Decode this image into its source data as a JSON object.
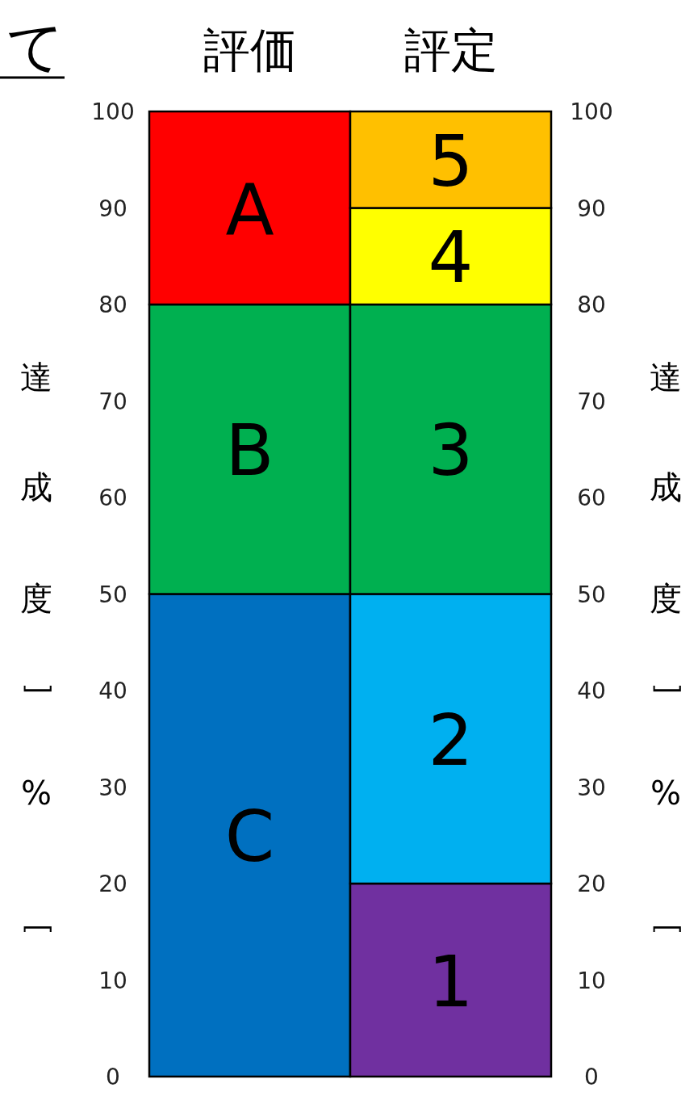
{
  "chart_data": {
    "type": "bar",
    "stacked": true,
    "categories": [
      "評価",
      "評定"
    ],
    "series": [
      {
        "colors": [
          "#0070c0",
          "#7030a0"
        ],
        "values": [
          50,
          20
        ]
      },
      {
        "colors": [
          "#00b050",
          "#00b0f0"
        ],
        "values": [
          30,
          30
        ]
      },
      {
        "colors": [
          "#ff0000",
          "#00b050"
        ],
        "values": [
          20,
          30
        ]
      },
      {
        "colors": [
          null,
          "#ffff00"
        ],
        "values": [
          null,
          10
        ]
      },
      {
        "colors": [
          null,
          "#ffc000"
        ],
        "values": [
          null,
          10
        ]
      }
    ],
    "ylabel": "達成度［%］",
    "y2label": "達成度［%］",
    "ylim": [
      0,
      100
    ],
    "yticks": [
      0,
      10,
      20,
      30,
      40,
      50,
      60,
      70,
      80,
      90,
      100
    ],
    "y2lim": [
      0,
      100
    ],
    "y2ticks": [
      0,
      10,
      20,
      30,
      40,
      50,
      60,
      70,
      80,
      90,
      100
    ],
    "annotations": [
      "て",
      "C",
      "B",
      "A",
      "1",
      "2",
      "3",
      "4",
      "5"
    ]
  }
}
